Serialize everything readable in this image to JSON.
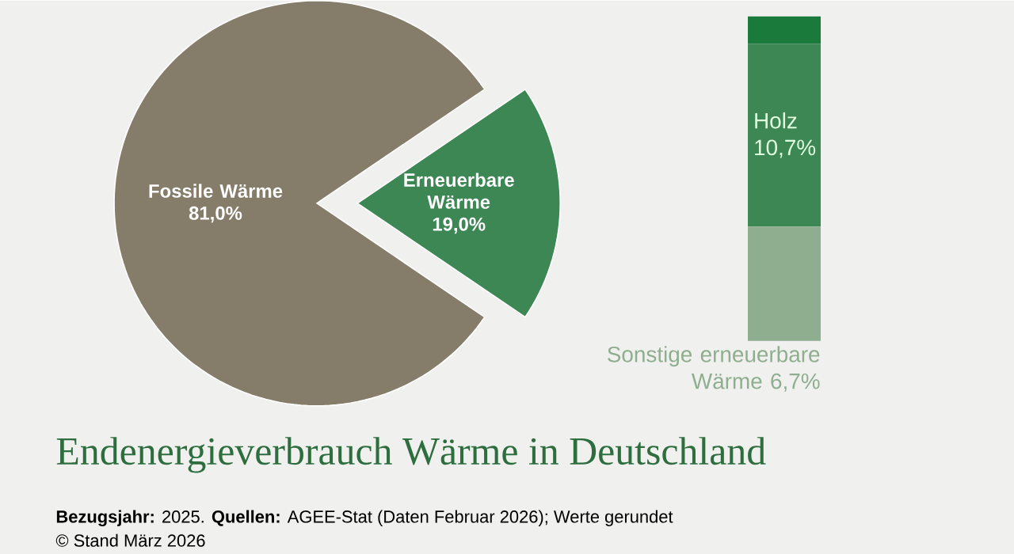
{
  "chart_data": [
    {
      "type": "pie",
      "title": "Endenergieverbrauch Wärme in Deutschland",
      "categories": [
        "Fossile Wärme",
        "Erneuerbare Wärme"
      ],
      "values": [
        81.0,
        19.0
      ],
      "colors": [
        "#857c6a",
        "#3d8755"
      ],
      "value_labels": [
        "81,0%",
        "19,0%"
      ],
      "annotations": [
        "**Bezugsjahr:** 2025. **Quellen:** AGEE-Stat (Daten Februar 2026); Werte gerundet",
        "© Stand März 2026"
      ]
    },
    {
      "type": "bar",
      "stacked": true,
      "categories": [
        null
      ],
      "series": [
        {
          "name": "Sonstige erneuerbare Wärme",
          "color": "#8fae90",
          "values": [
            6.7
          ],
          "value_labels": [
            "6,7%"
          ]
        },
        {
          "name": "Holz",
          "color": "#3d8755",
          "values": [
            10.7
          ],
          "value_labels": [
            "10,7%"
          ]
        },
        {
          "color": "#1a7a3c",
          "values": [
            1.6
          ]
        }
      ]
    }
  ]
}
